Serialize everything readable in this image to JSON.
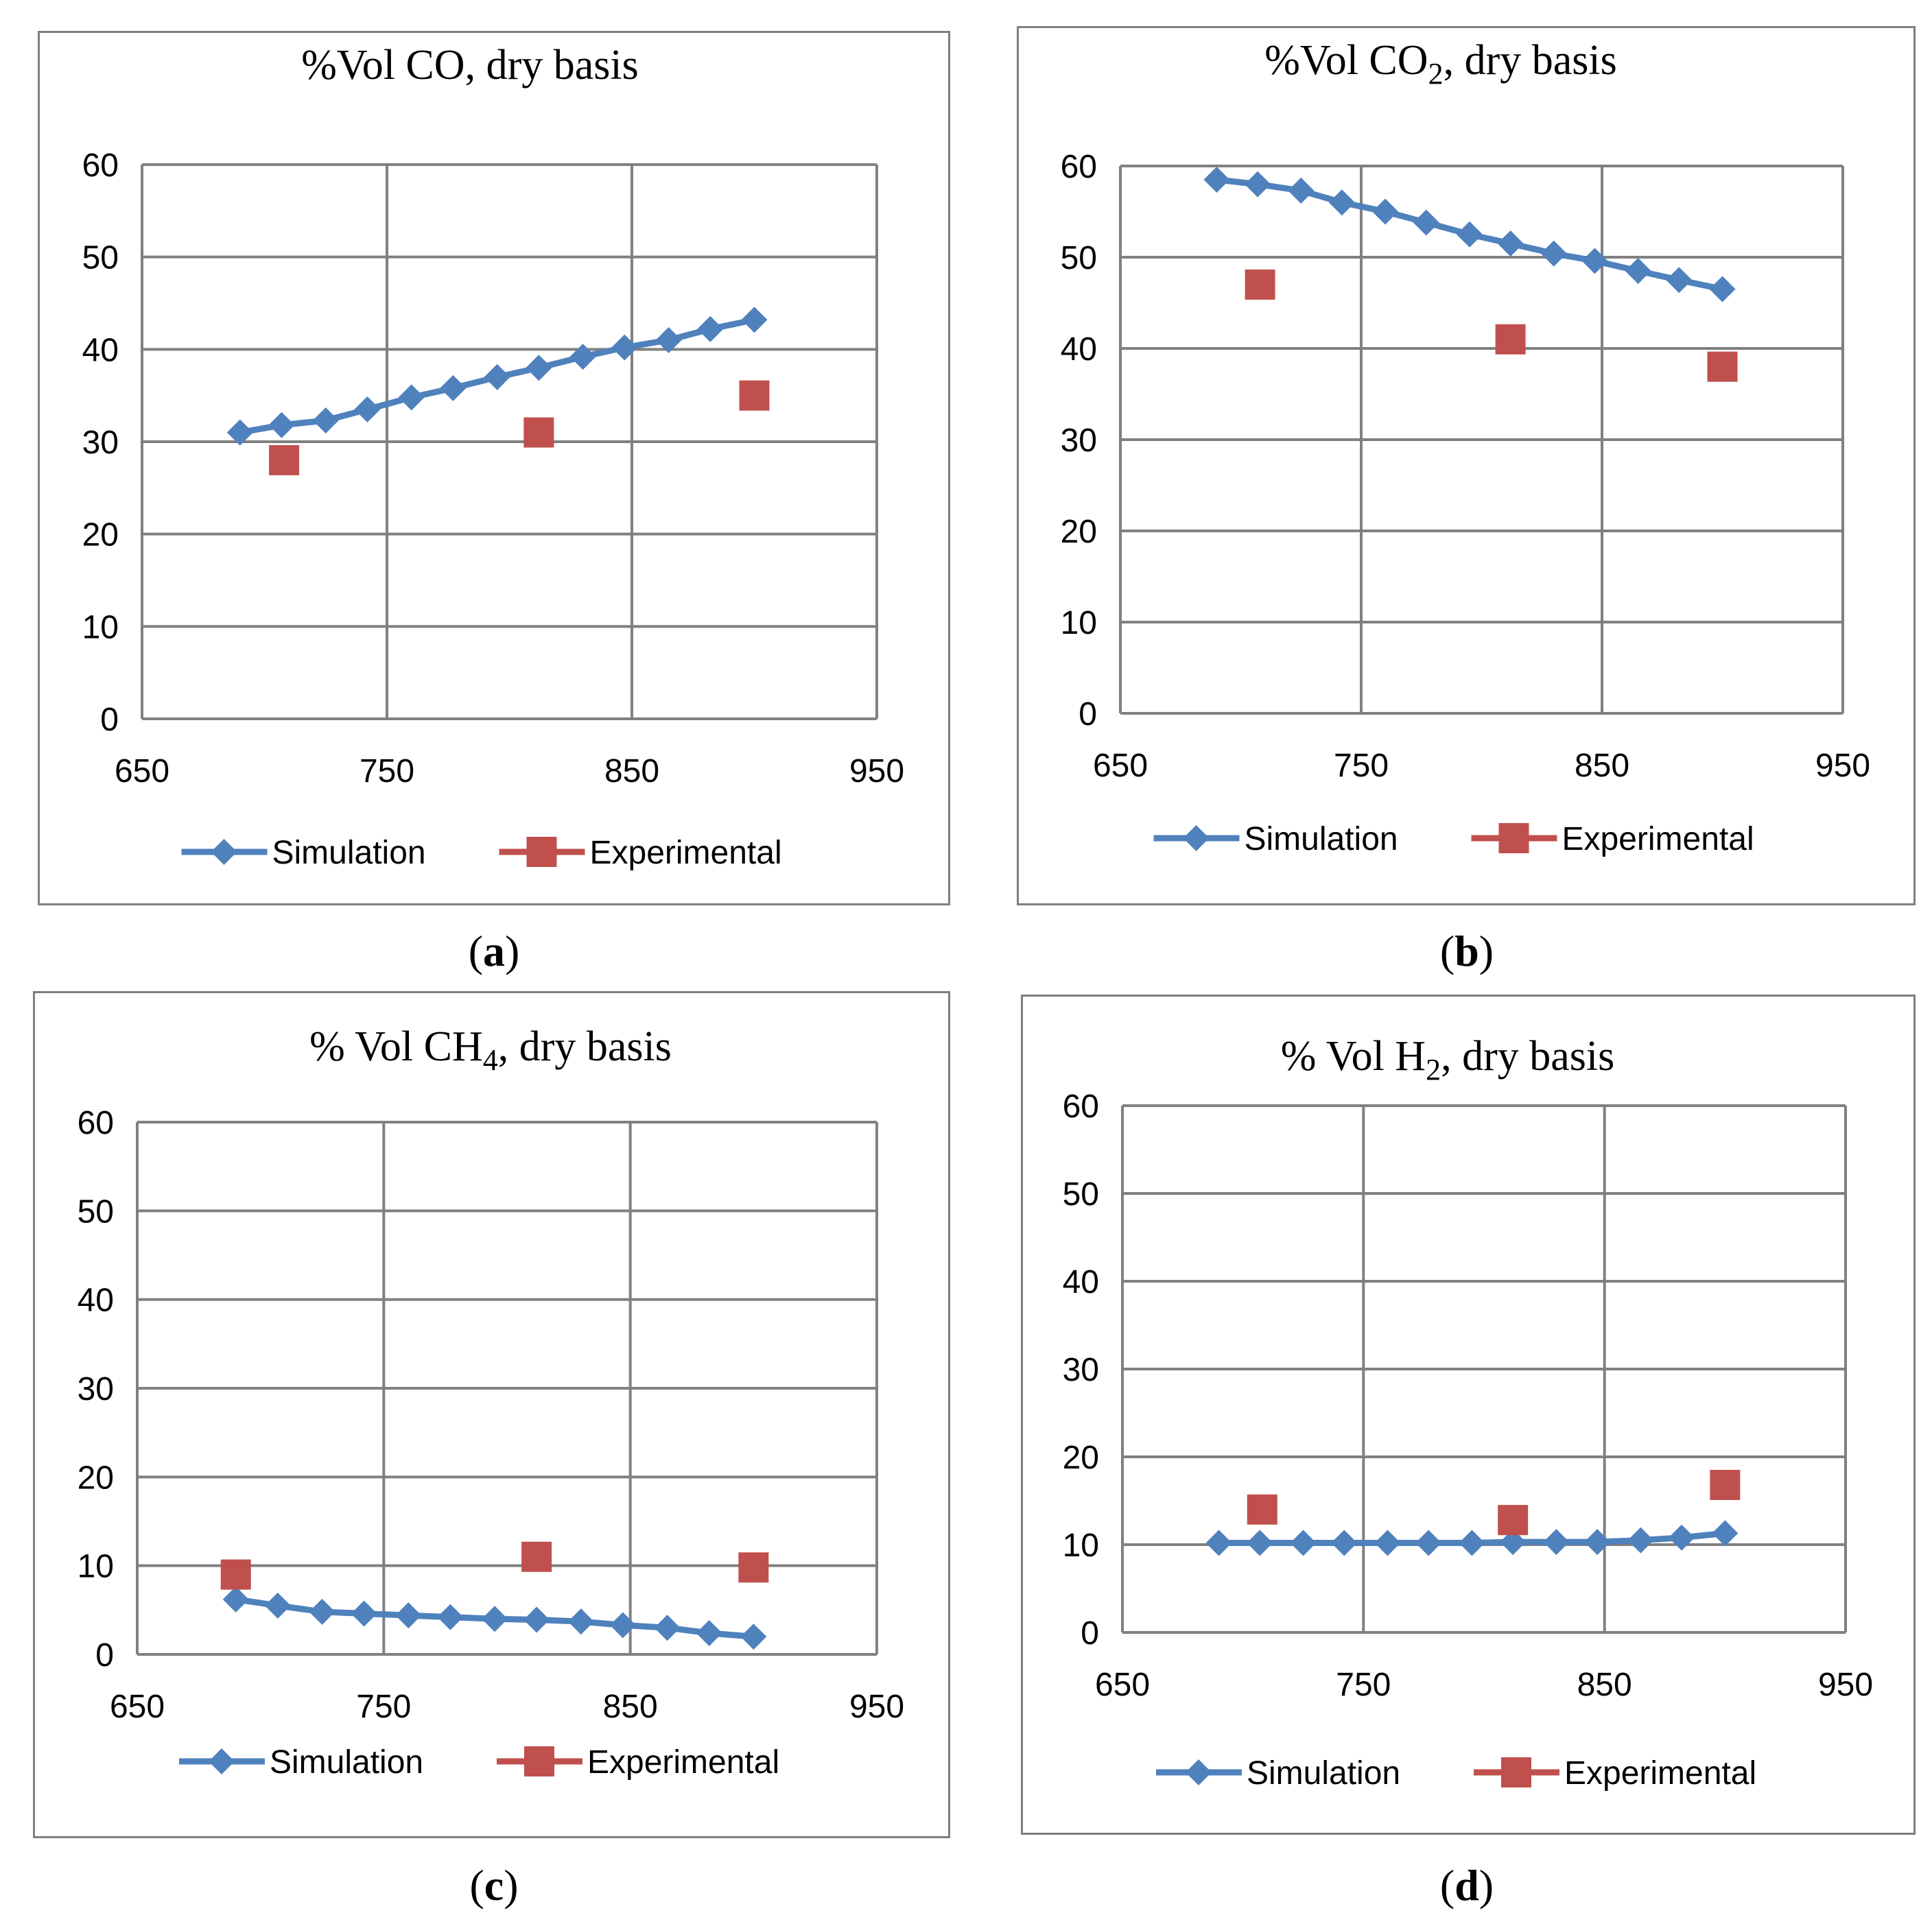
{
  "colors": {
    "simulation": "#4f81bd",
    "experimental": "#c0504d",
    "grid": "#808080"
  },
  "chart_data": [
    {
      "id": "a",
      "type": "line",
      "title": "%Vol CO, dry basis",
      "title_main": "%Vol CO",
      "title_sub": "",
      "title_rest": ", dry basis",
      "caption": "a",
      "xlim": [
        650,
        950
      ],
      "xticks": [
        650,
        750,
        850,
        950
      ],
      "ylim": [
        0,
        60
      ],
      "yticks": [
        0,
        10,
        20,
        30,
        40,
        50,
        60
      ],
      "grid": true,
      "legend": "bottom",
      "series": [
        {
          "name": "Simulation",
          "marker": "diamond",
          "x": [
            690,
            707,
            725,
            742,
            760,
            777,
            795,
            812,
            830,
            847,
            865,
            882,
            900
          ],
          "y": [
            31,
            31.8,
            32.3,
            33.5,
            34.8,
            35.8,
            37,
            38,
            39.2,
            40.2,
            41,
            42.2,
            43.2
          ]
        },
        {
          "name": "Experimental",
          "marker": "square",
          "x": [
            708,
            812,
            900
          ],
          "y": [
            28,
            31,
            35
          ]
        }
      ]
    },
    {
      "id": "b",
      "type": "line",
      "title": "%Vol CO2, dry basis",
      "title_main": "%Vol CO",
      "title_sub": "2",
      "title_rest": ", dry basis",
      "caption": "b",
      "xlim": [
        650,
        950
      ],
      "xticks": [
        650,
        750,
        850,
        950
      ],
      "ylim": [
        0,
        60
      ],
      "yticks": [
        0,
        10,
        20,
        30,
        40,
        50,
        60
      ],
      "grid": true,
      "legend": "bottom",
      "series": [
        {
          "name": "Simulation",
          "marker": "diamond",
          "x": [
            690,
            707,
            725,
            742,
            760,
            777,
            795,
            812,
            830,
            847,
            865,
            882,
            900
          ],
          "y": [
            58.5,
            58,
            57.3,
            56,
            55,
            53.8,
            52.5,
            51.5,
            50.4,
            49.6,
            48.5,
            47.5,
            46.5
          ]
        },
        {
          "name": "Experimental",
          "marker": "square",
          "x": [
            708,
            812,
            900
          ],
          "y": [
            47,
            41,
            38
          ]
        }
      ]
    },
    {
      "id": "c",
      "type": "line",
      "title": "% Vol CH4, dry basis",
      "title_main": "% Vol CH",
      "title_sub": "4",
      "title_rest": ", dry basis",
      "caption": "c",
      "xlim": [
        650,
        950
      ],
      "xticks": [
        650,
        750,
        850,
        950
      ],
      "ylim": [
        0,
        60
      ],
      "yticks": [
        0,
        10,
        20,
        30,
        40,
        50,
        60
      ],
      "grid": true,
      "legend": "bottom",
      "series": [
        {
          "name": "Simulation",
          "marker": "diamond",
          "x": [
            690,
            707,
            725,
            742,
            760,
            777,
            795,
            812,
            830,
            847,
            865,
            882,
            900
          ],
          "y": [
            6.2,
            5.5,
            4.8,
            4.6,
            4.4,
            4.2,
            4,
            3.9,
            3.7,
            3.3,
            3,
            2.4,
            2
          ]
        },
        {
          "name": "Experimental",
          "marker": "square",
          "x": [
            690,
            812,
            900
          ],
          "y": [
            9,
            11,
            9.8
          ]
        }
      ]
    },
    {
      "id": "d",
      "type": "line",
      "title": "% Vol H2, dry basis",
      "title_main": "% Vol H",
      "title_sub": "2",
      "title_rest": ", dry basis",
      "caption": "d",
      "xlim": [
        650,
        950
      ],
      "xticks": [
        650,
        750,
        850,
        950
      ],
      "ylim": [
        0,
        60
      ],
      "yticks": [
        0,
        10,
        20,
        30,
        40,
        50,
        60
      ],
      "grid": true,
      "legend": "bottom",
      "series": [
        {
          "name": "Simulation",
          "marker": "diamond",
          "x": [
            690,
            707,
            725,
            742,
            760,
            777,
            795,
            812,
            830,
            847,
            865,
            882,
            900
          ],
          "y": [
            10.2,
            10.2,
            10.2,
            10.2,
            10.2,
            10.2,
            10.2,
            10.3,
            10.3,
            10.3,
            10.5,
            10.8,
            11.3
          ]
        },
        {
          "name": "Experimental",
          "marker": "square",
          "x": [
            708,
            812,
            900
          ],
          "y": [
            14,
            12.8,
            16.8
          ]
        }
      ]
    }
  ]
}
